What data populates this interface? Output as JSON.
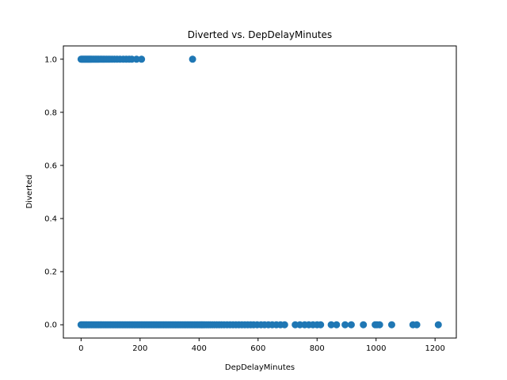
{
  "chart_data": {
    "type": "scatter",
    "title": "Diverted vs. DepDelayMinutes",
    "xlabel": "DepDelayMinutes",
    "ylabel": "Diverted",
    "xlim": [
      -60,
      1272
    ],
    "ylim": [
      -0.05,
      1.05
    ],
    "x_ticks": [
      0,
      200,
      400,
      600,
      800,
      1000,
      1200
    ],
    "y_ticks": [
      0.0,
      0.2,
      0.4,
      0.6,
      0.8,
      1.0
    ],
    "x_tick_labels": [
      "0",
      "200",
      "400",
      "600",
      "800",
      "1000",
      "1200"
    ],
    "y_tick_labels": [
      "0.0",
      "0.2",
      "0.4",
      "0.6",
      "0.8",
      "1.0"
    ],
    "grid": false,
    "legend": false,
    "marker_color": "#1f77b4",
    "series": [
      {
        "values_diverted_1": [
          [
            0,
            1
          ],
          [
            3,
            1
          ],
          [
            6,
            1
          ],
          [
            9,
            1
          ],
          [
            12,
            1
          ],
          [
            15,
            1
          ],
          [
            18,
            1
          ],
          [
            21,
            1
          ],
          [
            24,
            1
          ],
          [
            27,
            1
          ],
          [
            30,
            1
          ],
          [
            33,
            1
          ],
          [
            36,
            1
          ],
          [
            40,
            1
          ],
          [
            44,
            1
          ],
          [
            48,
            1
          ],
          [
            52,
            1
          ],
          [
            56,
            1
          ],
          [
            60,
            1
          ],
          [
            65,
            1
          ],
          [
            70,
            1
          ],
          [
            75,
            1
          ],
          [
            80,
            1
          ],
          [
            86,
            1
          ],
          [
            92,
            1
          ],
          [
            98,
            1
          ],
          [
            105,
            1
          ],
          [
            113,
            1
          ],
          [
            122,
            1
          ],
          [
            132,
            1
          ],
          [
            143,
            1
          ],
          [
            153,
            1
          ],
          [
            163,
            1
          ],
          [
            172,
            1
          ],
          [
            188,
            1
          ],
          [
            205,
            1
          ],
          [
            378,
            1
          ]
        ],
        "values_diverted_0": [
          [
            0,
            0
          ],
          [
            4,
            0
          ],
          [
            8,
            0
          ],
          [
            12,
            0
          ],
          [
            16,
            0
          ],
          [
            20,
            0
          ],
          [
            25,
            0
          ],
          [
            30,
            0
          ],
          [
            35,
            0
          ],
          [
            40,
            0
          ],
          [
            45,
            0
          ],
          [
            50,
            0
          ],
          [
            55,
            0
          ],
          [
            60,
            0
          ],
          [
            65,
            0
          ],
          [
            70,
            0
          ],
          [
            75,
            0
          ],
          [
            80,
            0
          ],
          [
            85,
            0
          ],
          [
            90,
            0
          ],
          [
            95,
            0
          ],
          [
            100,
            0
          ],
          [
            105,
            0
          ],
          [
            110,
            0
          ],
          [
            115,
            0
          ],
          [
            120,
            0
          ],
          [
            125,
            0
          ],
          [
            130,
            0
          ],
          [
            135,
            0
          ],
          [
            140,
            0
          ],
          [
            145,
            0
          ],
          [
            150,
            0
          ],
          [
            155,
            0
          ],
          [
            160,
            0
          ],
          [
            165,
            0
          ],
          [
            170,
            0
          ],
          [
            175,
            0
          ],
          [
            180,
            0
          ],
          [
            185,
            0
          ],
          [
            190,
            0
          ],
          [
            195,
            0
          ],
          [
            200,
            0
          ],
          [
            205,
            0
          ],
          [
            210,
            0
          ],
          [
            215,
            0
          ],
          [
            220,
            0
          ],
          [
            225,
            0
          ],
          [
            230,
            0
          ],
          [
            235,
            0
          ],
          [
            240,
            0
          ],
          [
            245,
            0
          ],
          [
            250,
            0
          ],
          [
            255,
            0
          ],
          [
            260,
            0
          ],
          [
            265,
            0
          ],
          [
            270,
            0
          ],
          [
            275,
            0
          ],
          [
            280,
            0
          ],
          [
            285,
            0
          ],
          [
            290,
            0
          ],
          [
            295,
            0
          ],
          [
            300,
            0
          ],
          [
            305,
            0
          ],
          [
            310,
            0
          ],
          [
            315,
            0
          ],
          [
            320,
            0
          ],
          [
            325,
            0
          ],
          [
            330,
            0
          ],
          [
            335,
            0
          ],
          [
            340,
            0
          ],
          [
            345,
            0
          ],
          [
            350,
            0
          ],
          [
            355,
            0
          ],
          [
            360,
            0
          ],
          [
            365,
            0
          ],
          [
            370,
            0
          ],
          [
            375,
            0
          ],
          [
            380,
            0
          ],
          [
            385,
            0
          ],
          [
            390,
            0
          ],
          [
            395,
            0
          ],
          [
            400,
            0
          ],
          [
            405,
            0
          ],
          [
            410,
            0
          ],
          [
            415,
            0
          ],
          [
            420,
            0
          ],
          [
            426,
            0
          ],
          [
            432,
            0
          ],
          [
            438,
            0
          ],
          [
            445,
            0
          ],
          [
            452,
            0
          ],
          [
            460,
            0
          ],
          [
            468,
            0
          ],
          [
            476,
            0
          ],
          [
            485,
            0
          ],
          [
            495,
            0
          ],
          [
            505,
            0
          ],
          [
            515,
            0
          ],
          [
            525,
            0
          ],
          [
            535,
            0
          ],
          [
            545,
            0
          ],
          [
            555,
            0
          ],
          [
            565,
            0
          ],
          [
            575,
            0
          ],
          [
            585,
            0
          ],
          [
            597,
            0
          ],
          [
            610,
            0
          ],
          [
            622,
            0
          ],
          [
            635,
            0
          ],
          [
            648,
            0
          ],
          [
            662,
            0
          ],
          [
            676,
            0
          ],
          [
            690,
            0
          ],
          [
            726,
            0
          ],
          [
            742,
            0
          ],
          [
            758,
            0
          ],
          [
            772,
            0
          ],
          [
            786,
            0
          ],
          [
            800,
            0
          ],
          [
            812,
            0
          ],
          [
            848,
            0
          ],
          [
            866,
            0
          ],
          [
            895,
            0
          ],
          [
            916,
            0
          ],
          [
            957,
            0
          ],
          [
            997,
            0
          ],
          [
            1003,
            0
          ],
          [
            1012,
            0
          ],
          [
            1053,
            0
          ],
          [
            1125,
            0
          ],
          [
            1138,
            0
          ],
          [
            1211,
            0
          ]
        ]
      }
    ]
  }
}
